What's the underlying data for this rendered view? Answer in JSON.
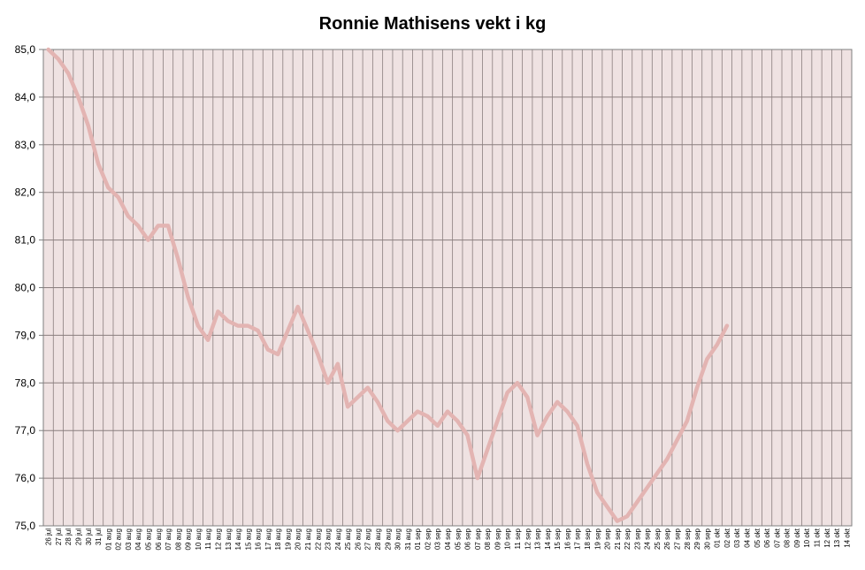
{
  "colors": {
    "plot_background": "#EFE2E2",
    "grid": "#8A7E7E",
    "line": "#E3B4B2",
    "frame": "#7F7F7F"
  },
  "chart_data": {
    "type": "line",
    "title": "Ronnie Mathisens vekt i kg",
    "xlabel": "",
    "ylabel": "",
    "ylim": [
      75.0,
      85.0
    ],
    "y_ticks": [
      "75,0",
      "76,0",
      "77,0",
      "78,0",
      "79,0",
      "80,0",
      "81,0",
      "82,0",
      "83,0",
      "84,0",
      "85,0"
    ],
    "grid": true,
    "legend": "none",
    "categories": [
      "26.jul",
      "27.jul",
      "28.jul",
      "29.jul",
      "30.jul",
      "31.jul",
      "01.aug",
      "02.aug",
      "03.aug",
      "04.aug",
      "05.aug",
      "06.aug",
      "07.aug",
      "08.aug",
      "09.aug",
      "10.aug",
      "11.aug",
      "12.aug",
      "13.aug",
      "14.aug",
      "15.aug",
      "16.aug",
      "17.aug",
      "18.aug",
      "19.aug",
      "20.aug",
      "21.aug",
      "22.aug",
      "23.aug",
      "24.aug",
      "25.aug",
      "26.aug",
      "27.aug",
      "28.aug",
      "29.aug",
      "30.aug",
      "31.aug",
      "01.sep",
      "02.sep",
      "03.sep",
      "04.sep",
      "05.sep",
      "06.sep",
      "07.sep",
      "08.sep",
      "09.sep",
      "10.sep",
      "11.sep",
      "12.sep",
      "13.sep",
      "14.sep",
      "15.sep",
      "16.sep",
      "17.sep",
      "18.sep",
      "19.sep",
      "20.sep",
      "21.sep",
      "22.sep",
      "23.sep",
      "24.sep",
      "25.sep",
      "26.sep",
      "27.sep",
      "28.sep",
      "29.sep",
      "30.sep",
      "01.okt",
      "02.okt",
      "03.okt",
      "04.okt",
      "05.okt",
      "06.okt",
      "07.okt",
      "08.okt",
      "09.okt",
      "10.okt",
      "11.okt",
      "12.okt",
      "13.okt",
      "14.okt"
    ],
    "series": [
      {
        "values": [
          85.0,
          84.8,
          84.5,
          84.0,
          83.4,
          82.6,
          82.1,
          81.9,
          81.5,
          81.3,
          81.0,
          81.3,
          81.3,
          80.6,
          79.8,
          79.2,
          78.9,
          79.5,
          79.3,
          79.2,
          79.2,
          79.1,
          78.7,
          78.6,
          79.1,
          79.6,
          79.1,
          78.6,
          78.0,
          78.4,
          77.5,
          77.7,
          77.9,
          77.6,
          77.2,
          77.0,
          77.2,
          77.4,
          77.3,
          77.1,
          77.4,
          77.2,
          76.9,
          76.0,
          76.6,
          77.2,
          77.8,
          78.0,
          77.7,
          76.9,
          77.3,
          77.6,
          77.4,
          77.1,
          76.3,
          75.7,
          75.4,
          75.1,
          75.2,
          75.5,
          75.8,
          76.1,
          76.4,
          76.8,
          77.2,
          77.9,
          78.5,
          78.8,
          79.2,
          null,
          null,
          null,
          null,
          null,
          null,
          null,
          null,
          null,
          null,
          null,
          null
        ]
      }
    ]
  }
}
